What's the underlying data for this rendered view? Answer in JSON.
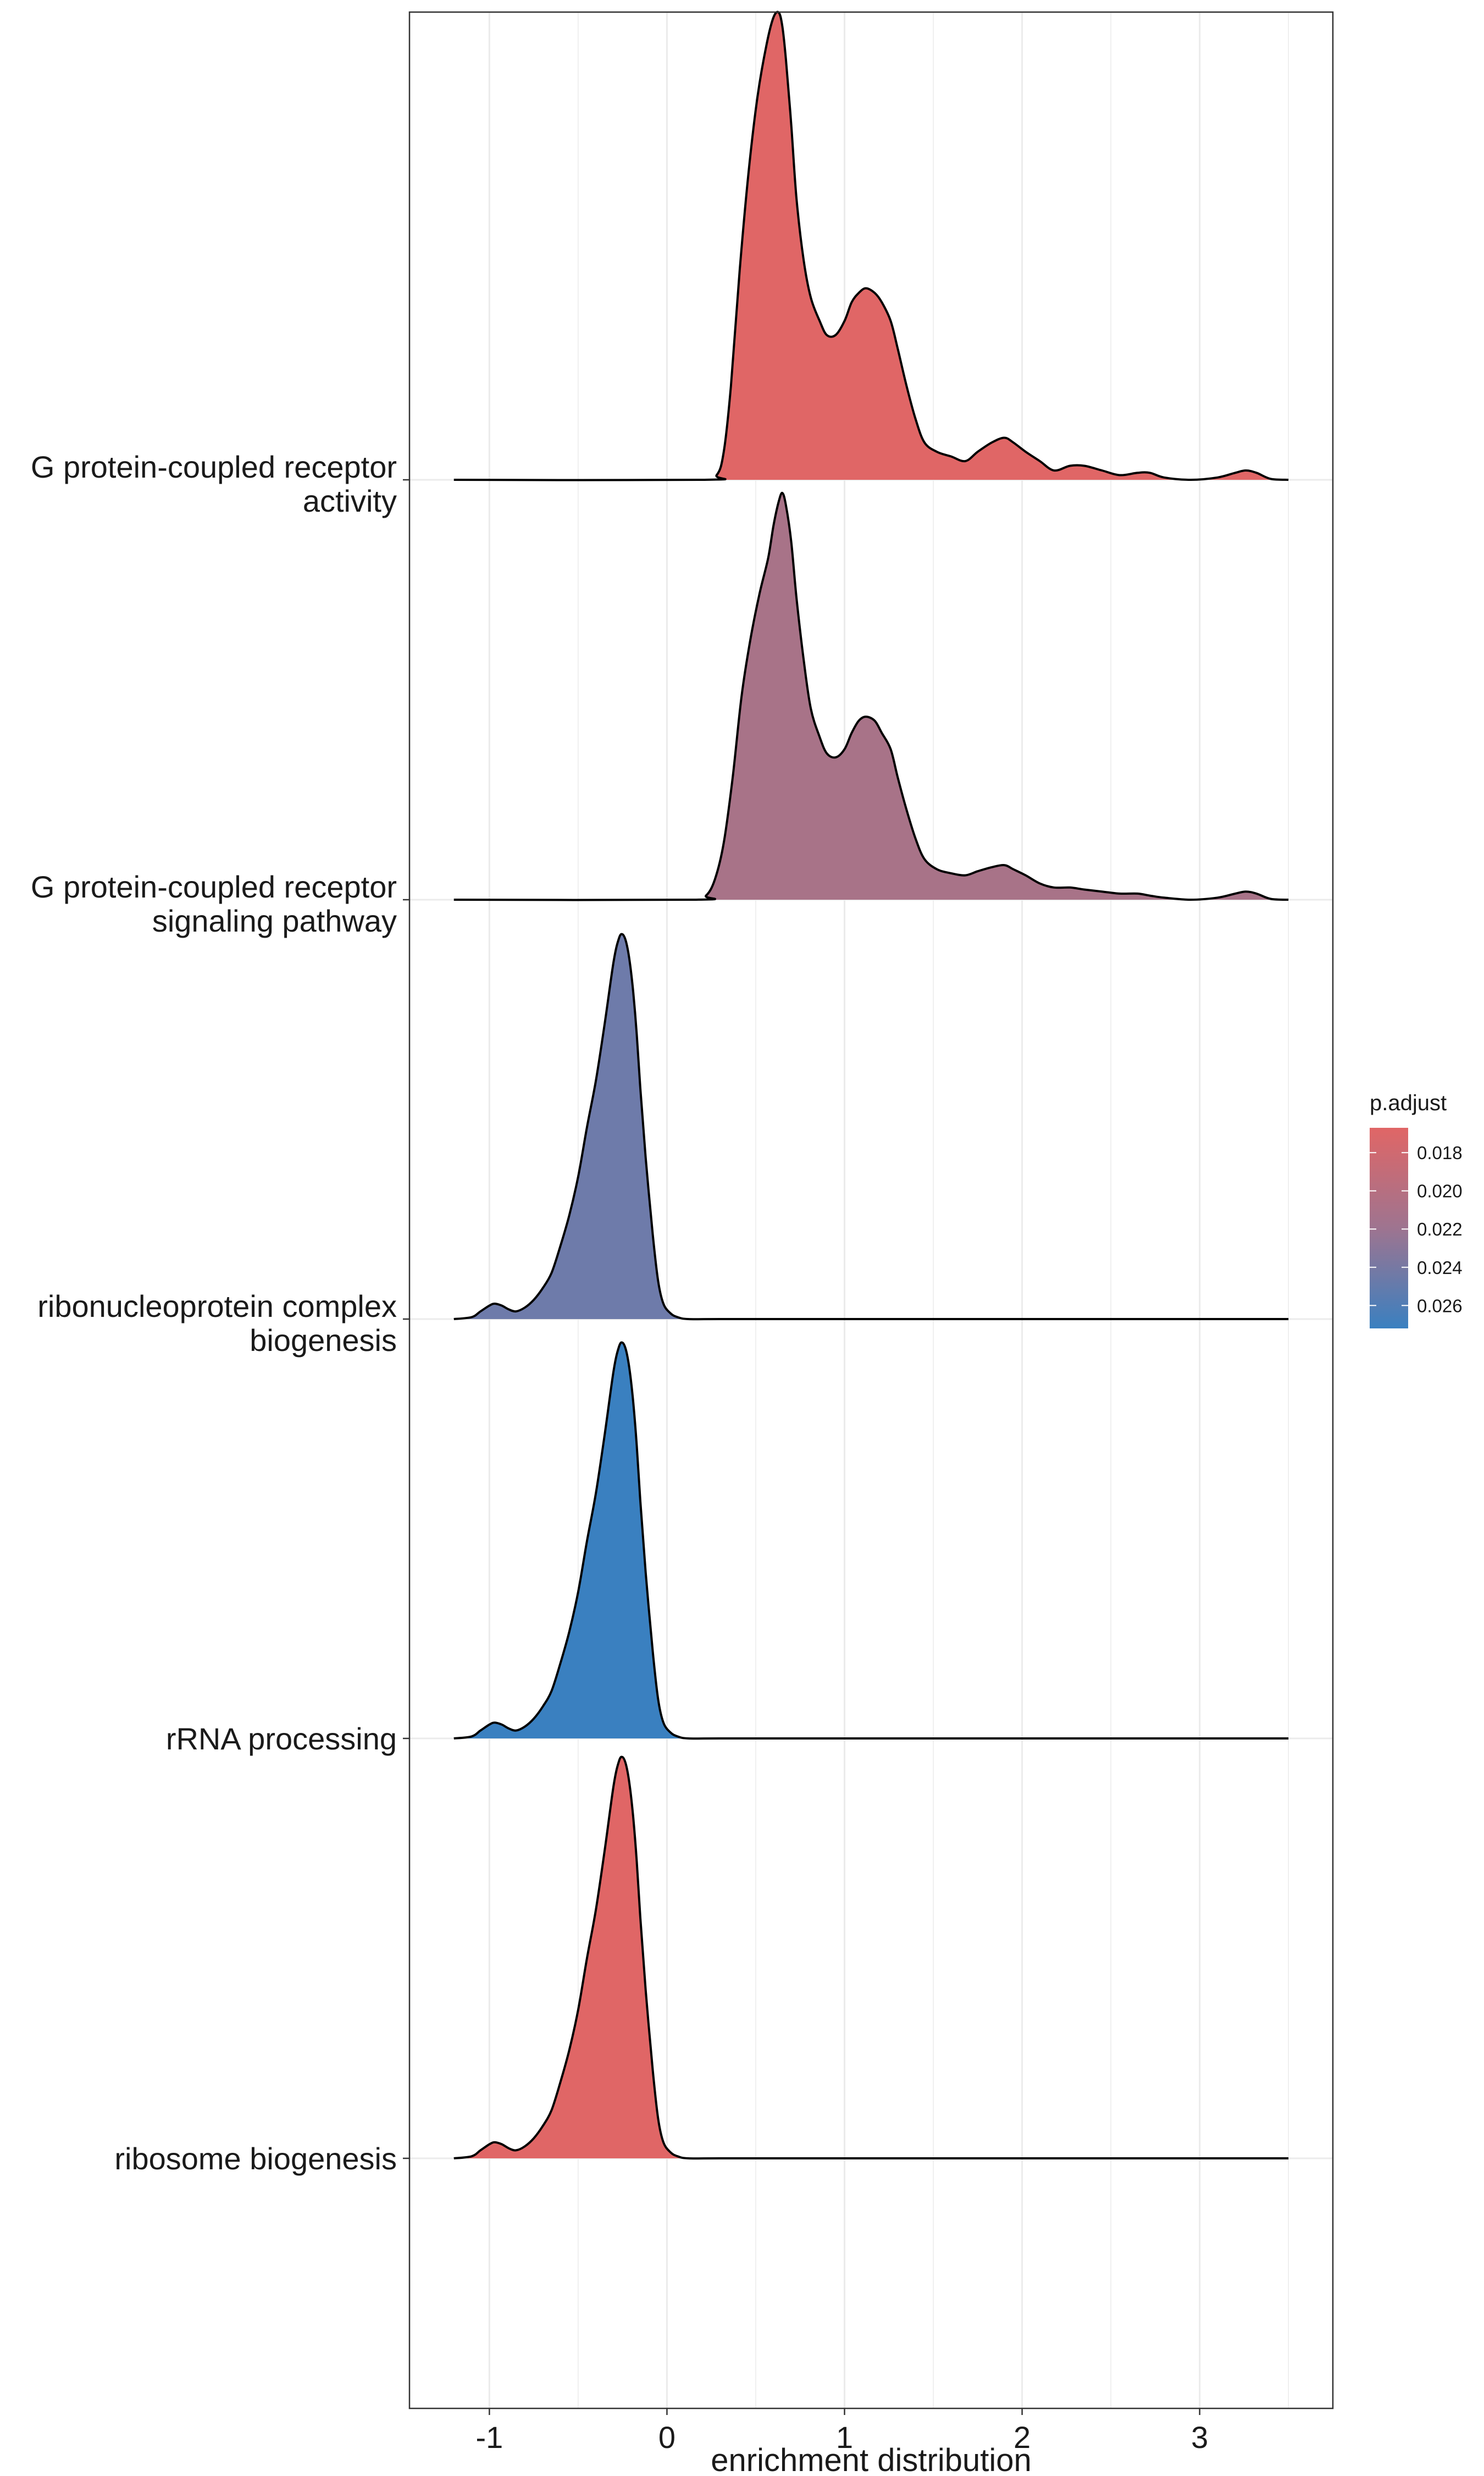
{
  "chart_data": {
    "type": "ridgeline",
    "xlabel": "enrichment distribution",
    "ylabel": "",
    "title": "",
    "xlim": [
      -1.45,
      3.75
    ],
    "xticks": [
      -1,
      0,
      1,
      2,
      3
    ],
    "grid": true,
    "legend": {
      "title": "p.adjust",
      "position": "right",
      "ticks": [
        0.018,
        0.02,
        0.022,
        0.024,
        0.026
      ],
      "tick_labels": [
        "0.018",
        "0.020",
        "0.022",
        "0.024",
        "0.026"
      ],
      "range": [
        0.0167,
        0.0272
      ],
      "color_low": "#E06666",
      "color_high": "#3A80C0"
    },
    "categories": [
      {
        "label_lines": [
          "G protein-coupled receptor",
          "activity"
        ],
        "p_adjust": 0.0168,
        "color": "#E06666"
      },
      {
        "label_lines": [
          "G protein-coupled receptor",
          "signaling pathway"
        ],
        "p_adjust": 0.021,
        "color": "#A87388"
      },
      {
        "label_lines": [
          "ribonucleoprotein complex",
          "biogenesis"
        ],
        "p_adjust": 0.0238,
        "color": "#6E7BAA"
      },
      {
        "label_lines": [
          "rRNA processing"
        ],
        "p_adjust": 0.027,
        "color": "#3A80C0"
      },
      {
        "label_lines": [
          "ribosome biogenesis"
        ],
        "p_adjust": 0.017,
        "color": "#E06666"
      }
    ],
    "series": [
      {
        "name": "G protein-coupled receptor activity",
        "x": [
          -1.2,
          0.2,
          0.28,
          0.32,
          0.36,
          0.41,
          0.46,
          0.51,
          0.56,
          0.6,
          0.63,
          0.65,
          0.67,
          0.7,
          0.73,
          0.77,
          0.81,
          0.86,
          0.9,
          0.95,
          1.0,
          1.04,
          1.08,
          1.12,
          1.17,
          1.21,
          1.26,
          1.3,
          1.35,
          1.4,
          1.45,
          1.52,
          1.6,
          1.68,
          1.75,
          1.83,
          1.9,
          1.95,
          2.02,
          2.1,
          2.18,
          2.27,
          2.35,
          2.45,
          2.55,
          2.65,
          2.72,
          2.8,
          2.95,
          3.1,
          3.2,
          3.26,
          3.32,
          3.4,
          3.5
        ],
        "y": [
          0,
          0,
          0.01,
          0.06,
          0.2,
          0.45,
          0.66,
          0.82,
          0.93,
          0.99,
          1.0,
          0.97,
          0.9,
          0.76,
          0.6,
          0.47,
          0.39,
          0.34,
          0.31,
          0.31,
          0.34,
          0.38,
          0.4,
          0.41,
          0.4,
          0.38,
          0.34,
          0.28,
          0.2,
          0.13,
          0.08,
          0.06,
          0.05,
          0.04,
          0.06,
          0.08,
          0.09,
          0.08,
          0.06,
          0.04,
          0.02,
          0.03,
          0.03,
          0.02,
          0.01,
          0.015,
          0.015,
          0.005,
          0,
          0.005,
          0.015,
          0.02,
          0.015,
          0.002,
          0
        ]
      },
      {
        "name": "G protein-coupled receptor signaling pathway",
        "x": [
          -1.2,
          0.15,
          0.22,
          0.27,
          0.32,
          0.37,
          0.42,
          0.47,
          0.52,
          0.57,
          0.6,
          0.63,
          0.65,
          0.67,
          0.7,
          0.73,
          0.77,
          0.81,
          0.86,
          0.9,
          0.95,
          1.0,
          1.04,
          1.08,
          1.12,
          1.17,
          1.21,
          1.26,
          1.3,
          1.35,
          1.4,
          1.45,
          1.52,
          1.6,
          1.68,
          1.75,
          1.83,
          1.9,
          1.95,
          2.02,
          2.1,
          2.18,
          2.27,
          2.35,
          2.45,
          2.55,
          2.65,
          2.72,
          2.8,
          2.95,
          3.1,
          3.2,
          3.26,
          3.32,
          3.4,
          3.5
        ],
        "y": [
          0,
          0,
          0.01,
          0.05,
          0.14,
          0.3,
          0.5,
          0.64,
          0.75,
          0.84,
          0.92,
          0.98,
          1.0,
          0.97,
          0.88,
          0.74,
          0.59,
          0.47,
          0.4,
          0.36,
          0.35,
          0.37,
          0.41,
          0.44,
          0.45,
          0.44,
          0.41,
          0.37,
          0.3,
          0.22,
          0.15,
          0.1,
          0.075,
          0.065,
          0.06,
          0.07,
          0.08,
          0.085,
          0.075,
          0.06,
          0.04,
          0.03,
          0.03,
          0.025,
          0.02,
          0.015,
          0.015,
          0.01,
          0.005,
          0,
          0.005,
          0.015,
          0.02,
          0.015,
          0.002,
          0
        ]
      },
      {
        "name": "ribonucleoprotein complex biogenesis",
        "x": [
          -1.2,
          -1.1,
          -1.05,
          -1.0,
          -0.97,
          -0.93,
          -0.89,
          -0.85,
          -0.8,
          -0.75,
          -0.7,
          -0.65,
          -0.6,
          -0.55,
          -0.5,
          -0.45,
          -0.4,
          -0.35,
          -0.3,
          -0.27,
          -0.25,
          -0.23,
          -0.21,
          -0.19,
          -0.17,
          -0.15,
          -0.12,
          -0.08,
          -0.05,
          -0.02,
          0.02,
          0.06,
          0.12,
          0.3,
          1.0,
          2.0,
          3.5
        ],
        "y": [
          0,
          0.005,
          0.02,
          0.035,
          0.04,
          0.035,
          0.025,
          0.02,
          0.03,
          0.05,
          0.08,
          0.12,
          0.19,
          0.27,
          0.37,
          0.5,
          0.62,
          0.77,
          0.93,
          0.99,
          1.0,
          0.98,
          0.93,
          0.85,
          0.74,
          0.6,
          0.42,
          0.22,
          0.1,
          0.04,
          0.015,
          0.005,
          0,
          0,
          0,
          0,
          0
        ]
      },
      {
        "name": "rRNA processing",
        "x": [
          -1.2,
          -1.1,
          -1.05,
          -1.0,
          -0.97,
          -0.93,
          -0.89,
          -0.85,
          -0.8,
          -0.75,
          -0.7,
          -0.65,
          -0.6,
          -0.55,
          -0.5,
          -0.45,
          -0.4,
          -0.35,
          -0.3,
          -0.27,
          -0.25,
          -0.23,
          -0.21,
          -0.19,
          -0.17,
          -0.15,
          -0.12,
          -0.08,
          -0.05,
          -0.02,
          0.02,
          0.06,
          0.12,
          0.3,
          1.0,
          2.0,
          3.5
        ],
        "y": [
          0,
          0.005,
          0.02,
          0.035,
          0.04,
          0.035,
          0.025,
          0.02,
          0.03,
          0.05,
          0.08,
          0.12,
          0.19,
          0.27,
          0.37,
          0.5,
          0.62,
          0.77,
          0.93,
          0.99,
          1.0,
          0.98,
          0.93,
          0.85,
          0.74,
          0.6,
          0.42,
          0.22,
          0.1,
          0.04,
          0.015,
          0.005,
          0,
          0,
          0,
          0,
          0
        ]
      },
      {
        "name": "ribosome biogenesis",
        "x": [
          -1.2,
          -1.1,
          -1.05,
          -1.0,
          -0.97,
          -0.93,
          -0.89,
          -0.85,
          -0.8,
          -0.75,
          -0.7,
          -0.65,
          -0.6,
          -0.55,
          -0.5,
          -0.45,
          -0.4,
          -0.35,
          -0.3,
          -0.27,
          -0.25,
          -0.23,
          -0.21,
          -0.19,
          -0.17,
          -0.15,
          -0.12,
          -0.08,
          -0.05,
          -0.02,
          0.02,
          0.06,
          0.12,
          0.3,
          1.0,
          2.0,
          3.5
        ],
        "y": [
          0,
          0.005,
          0.02,
          0.035,
          0.04,
          0.035,
          0.025,
          0.02,
          0.03,
          0.05,
          0.08,
          0.12,
          0.19,
          0.27,
          0.37,
          0.5,
          0.62,
          0.77,
          0.93,
          0.99,
          1.0,
          0.98,
          0.93,
          0.85,
          0.74,
          0.6,
          0.42,
          0.22,
          0.1,
          0.04,
          0.015,
          0.005,
          0,
          0,
          0,
          0,
          0
        ]
      }
    ]
  }
}
